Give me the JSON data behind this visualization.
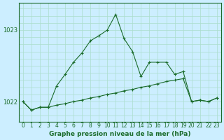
{
  "title": "Graphe pression niveau de la mer (hPa)",
  "background_color": "#cceeff",
  "grid_color": "#aaddcc",
  "line_color": "#1a6b2a",
  "x_labels": [
    "0",
    "1",
    "2",
    "3",
    "4",
    "5",
    "6",
    "7",
    "8",
    "9",
    "10",
    "11",
    "12",
    "13",
    "14",
    "15",
    "16",
    "17",
    "18",
    "19",
    "20",
    "21",
    "22",
    "23"
  ],
  "yticks": [
    1022,
    1023
  ],
  "ylim": [
    1021.72,
    1023.38
  ],
  "xlim": [
    -0.5,
    23.5
  ],
  "series_jagged": [
    1022.0,
    1021.88,
    1021.92,
    1021.92,
    1022.22,
    1022.38,
    1022.55,
    1022.68,
    1022.85,
    1022.92,
    1023.0,
    1023.22,
    1022.88,
    1022.7,
    1022.35,
    1022.55,
    1022.55,
    1022.55,
    1022.38,
    1022.42,
    1022.0,
    1022.02,
    1022.0,
    1022.05
  ],
  "series_smooth": [
    1022.0,
    1021.88,
    1021.92,
    1021.92,
    1021.95,
    1021.97,
    1022.0,
    1022.02,
    1022.05,
    1022.07,
    1022.1,
    1022.12,
    1022.15,
    1022.17,
    1022.2,
    1022.22,
    1022.25,
    1022.28,
    1022.3,
    1022.32,
    1022.0,
    1022.02,
    1022.0,
    1022.05
  ],
  "title_fontsize": 6.5,
  "tick_fontsize": 5.5,
  "ytick_fontsize": 6.0
}
